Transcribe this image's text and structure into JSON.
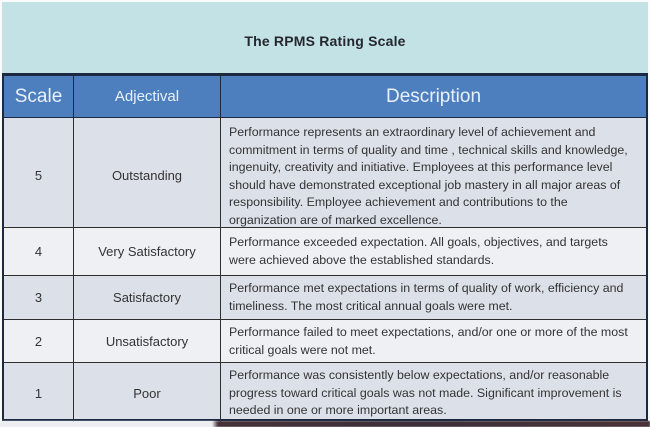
{
  "title": "The RPMS Rating Scale",
  "table": {
    "headers": [
      "Scale",
      "Adjectival",
      "Description"
    ],
    "rows": [
      {
        "scale": "5",
        "adjectival": "Outstanding",
        "description": "Performance represents an extraordinary level of achievement and commitment in terms of quality and time , technical skills and knowledge, ingenuity, creativity and initiative. Employees at this performance level should have demonstrated exceptional job mastery in all major areas of responsibility. Employee achievement and contributions to the organization are of marked excellence."
      },
      {
        "scale": "4",
        "adjectival": "Very Satisfactory",
        "description": "Performance exceeded expectation. All goals, objectives, and targets were achieved above the established standards."
      },
      {
        "scale": "3",
        "adjectival": "Satisfactory",
        "description": "Performance met expectations in terms of quality of work, efficiency and timeliness. The most critical annual goals were met."
      },
      {
        "scale": "2",
        "adjectival": "Unsatisfactory",
        "description": "Performance failed to meet expectations, and/or one or more of the most critical goals were not met."
      },
      {
        "scale": "1",
        "adjectival": "Poor",
        "description": "Performance was consistently below expectations, and/or reasonable progress toward critical goals was not made. Significant improvement is needed in one or more important areas."
      }
    ]
  },
  "colors": {
    "title_band_bg": "#c2e2e6",
    "header_bg": "#4d7ebd",
    "header_text": "#e8f1fb",
    "row_odd_bg": "#dce1e9",
    "row_even_bg": "#eef0f3",
    "grid_border": "#2e2e2e",
    "outer_border": "#1b2a40",
    "body_text": "#333333",
    "title_text": "#26262e"
  }
}
